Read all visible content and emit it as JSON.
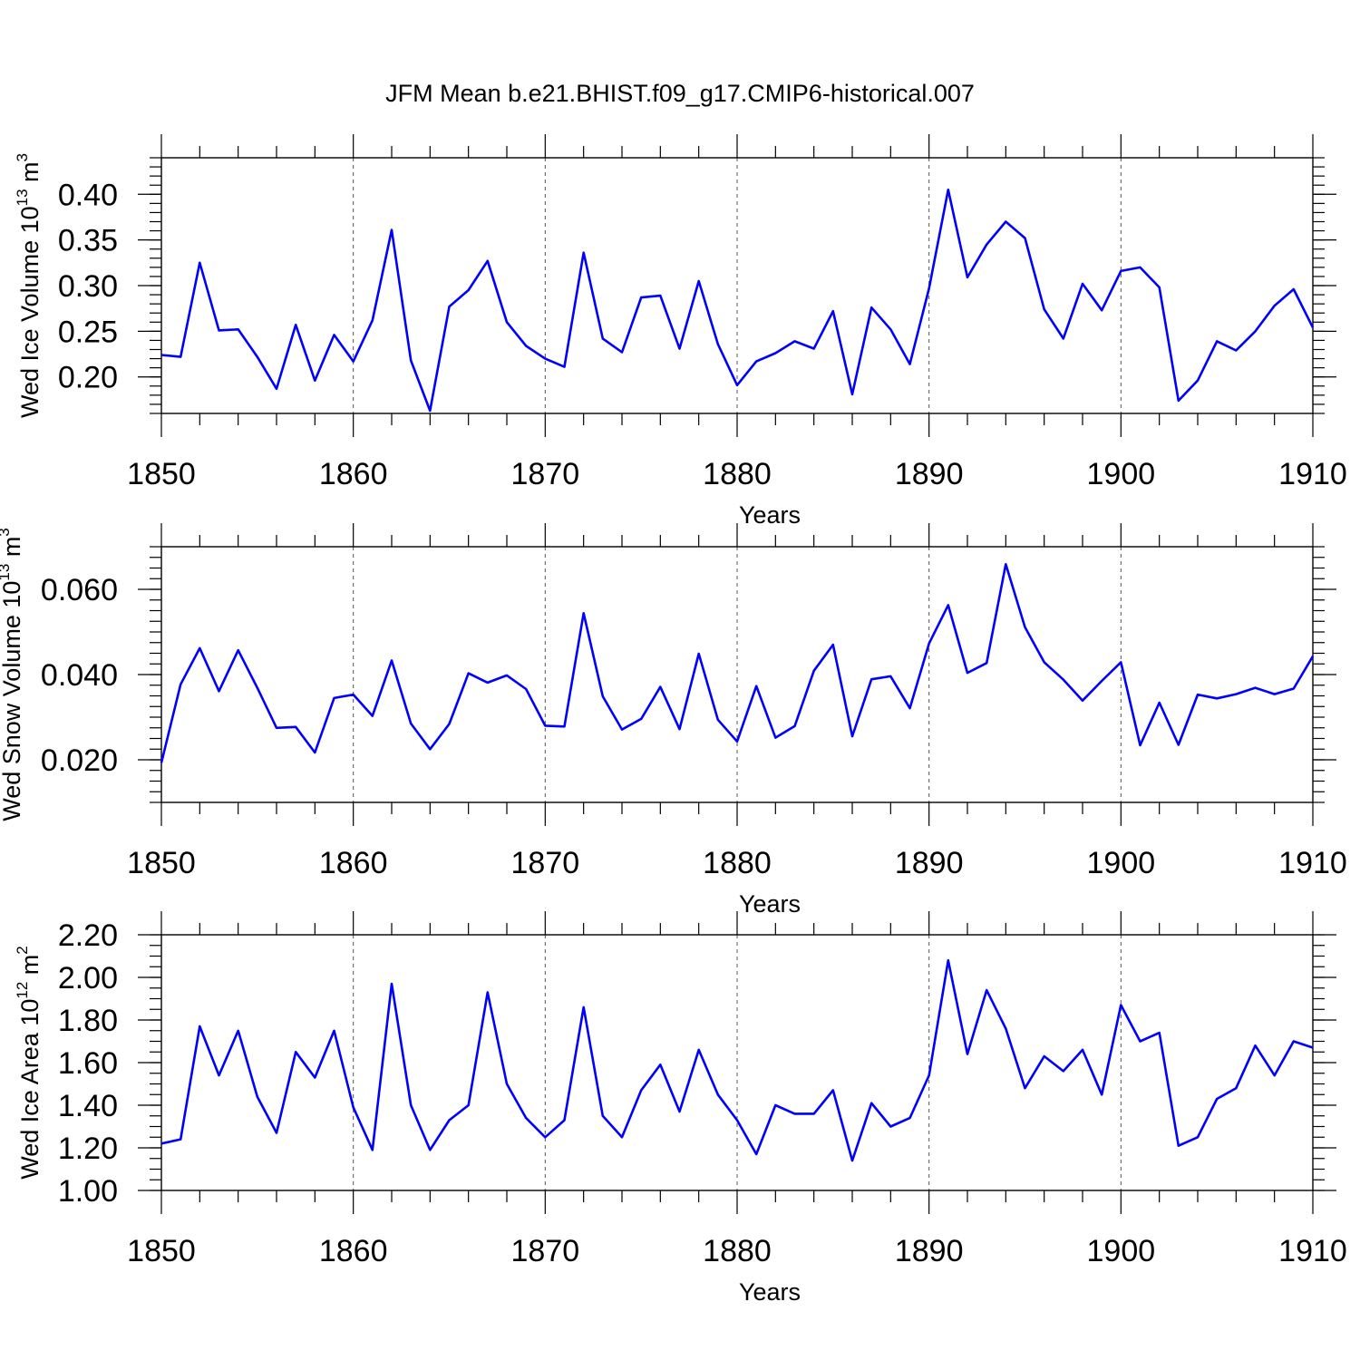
{
  "figure_title": "JFM Mean b.e21.BHIST.f09_g17.CMIP6-historical.007",
  "series_color": "#0000ff",
  "chart_data": [
    {
      "type": "line",
      "title": "JFM Mean b.e21.BHIST.f09_g17.CMIP6-historical.007",
      "xlabel": "Years",
      "ylabel": {
        "text": "Wed Ice Volume 10",
        "sup_exp": "13",
        "unit": " m",
        "sup_unit": "3"
      },
      "xlim": [
        1850,
        1910
      ],
      "ylim": [
        0.16,
        0.44
      ],
      "xticks": [
        1850,
        1860,
        1870,
        1880,
        1890,
        1900,
        1910
      ],
      "yticks": [
        "0.20",
        "0.25",
        "0.30",
        "0.35",
        "0.40"
      ],
      "ytick_values": [
        0.2,
        0.25,
        0.3,
        0.35,
        0.4
      ],
      "y_minor_step": 0.01,
      "grid": "vertical dashed",
      "x": [
        1850,
        1851,
        1852,
        1853,
        1854,
        1855,
        1856,
        1857,
        1858,
        1859,
        1860,
        1861,
        1862,
        1863,
        1864,
        1865,
        1866,
        1867,
        1868,
        1869,
        1870,
        1871,
        1872,
        1873,
        1874,
        1875,
        1876,
        1877,
        1878,
        1879,
        1880,
        1881,
        1882,
        1883,
        1884,
        1885,
        1886,
        1887,
        1888,
        1889,
        1890,
        1891,
        1892,
        1893,
        1894,
        1895,
        1896,
        1897,
        1898,
        1899,
        1900,
        1901,
        1902,
        1903,
        1904,
        1905,
        1906,
        1907,
        1908,
        1909,
        1910
      ],
      "values": [
        0.224,
        0.222,
        0.325,
        0.251,
        0.252,
        0.222,
        0.187,
        0.257,
        0.196,
        0.246,
        0.217,
        0.262,
        0.361,
        0.218,
        0.163,
        0.277,
        0.295,
        0.327,
        0.26,
        0.234,
        0.22,
        0.211,
        0.336,
        0.242,
        0.227,
        0.287,
        0.289,
        0.231,
        0.305,
        0.236,
        0.191,
        0.217,
        0.226,
        0.239,
        0.231,
        0.272,
        0.181,
        0.276,
        0.252,
        0.214,
        0.297,
        0.405,
        0.309,
        0.345,
        0.37,
        0.352,
        0.274,
        0.242,
        0.302,
        0.273,
        0.316,
        0.32,
        0.298,
        0.174,
        0.196,
        0.239,
        0.229,
        0.25,
        0.278,
        0.296,
        0.254
      ]
    },
    {
      "type": "line",
      "xlabel": "Years",
      "ylabel": {
        "text": "Wed Snow Volume 10",
        "sup_exp": "13",
        "unit": " m",
        "sup_unit": "3"
      },
      "xlim": [
        1850,
        1910
      ],
      "ylim": [
        0.01,
        0.07
      ],
      "xticks": [
        1850,
        1860,
        1870,
        1880,
        1890,
        1900,
        1910
      ],
      "yticks": [
        "0.020",
        "0.040",
        "0.060"
      ],
      "ytick_values": [
        0.02,
        0.04,
        0.06
      ],
      "y_minor_step": 0.0025,
      "grid": "vertical dashed",
      "x": [
        1850,
        1851,
        1852,
        1853,
        1854,
        1855,
        1856,
        1857,
        1858,
        1859,
        1860,
        1861,
        1862,
        1863,
        1864,
        1865,
        1866,
        1867,
        1868,
        1869,
        1870,
        1871,
        1872,
        1873,
        1874,
        1875,
        1876,
        1877,
        1878,
        1879,
        1880,
        1881,
        1882,
        1883,
        1884,
        1885,
        1886,
        1887,
        1888,
        1889,
        1890,
        1891,
        1892,
        1893,
        1894,
        1895,
        1896,
        1897,
        1898,
        1899,
        1900,
        1901,
        1902,
        1903,
        1904,
        1905,
        1906,
        1907,
        1908,
        1909,
        1910
      ],
      "values": [
        0.0193,
        0.0377,
        0.0462,
        0.0361,
        0.0457,
        0.0369,
        0.0275,
        0.0277,
        0.0217,
        0.0345,
        0.0353,
        0.0303,
        0.0433,
        0.0285,
        0.0225,
        0.0284,
        0.0403,
        0.0381,
        0.0398,
        0.0366,
        0.028,
        0.0278,
        0.0544,
        0.0349,
        0.0271,
        0.0296,
        0.0371,
        0.0272,
        0.0449,
        0.0294,
        0.0243,
        0.0373,
        0.0252,
        0.0279,
        0.0409,
        0.047,
        0.0255,
        0.0389,
        0.0396,
        0.0321,
        0.0473,
        0.0563,
        0.0404,
        0.0427,
        0.0659,
        0.0511,
        0.0429,
        0.0388,
        0.0339,
        0.0385,
        0.0429,
        0.0234,
        0.0334,
        0.0235,
        0.0353,
        0.0344,
        0.0354,
        0.0369,
        0.0354,
        0.0367,
        0.0443
      ]
    },
    {
      "type": "line",
      "xlabel": "Years",
      "ylabel": {
        "text": "Wed Ice Area 10",
        "sup_exp": "12",
        "unit": " m",
        "sup_unit": "2"
      },
      "xlim": [
        1850,
        1910
      ],
      "ylim": [
        1.0,
        2.2
      ],
      "xticks": [
        1850,
        1860,
        1870,
        1880,
        1890,
        1900,
        1910
      ],
      "yticks": [
        "1.00",
        "1.20",
        "1.40",
        "1.60",
        "1.80",
        "2.00",
        "2.20"
      ],
      "ytick_values": [
        1.0,
        1.2,
        1.4,
        1.6,
        1.8,
        2.0,
        2.2
      ],
      "y_minor_step": 0.05,
      "grid": "vertical dashed",
      "x": [
        1850,
        1851,
        1852,
        1853,
        1854,
        1855,
        1856,
        1857,
        1858,
        1859,
        1860,
        1861,
        1862,
        1863,
        1864,
        1865,
        1866,
        1867,
        1868,
        1869,
        1870,
        1871,
        1872,
        1873,
        1874,
        1875,
        1876,
        1877,
        1878,
        1879,
        1880,
        1881,
        1882,
        1883,
        1884,
        1885,
        1886,
        1887,
        1888,
        1889,
        1890,
        1891,
        1892,
        1893,
        1894,
        1895,
        1896,
        1897,
        1898,
        1899,
        1900,
        1901,
        1902,
        1903,
        1904,
        1905,
        1906,
        1907,
        1908,
        1909,
        1910
      ],
      "values": [
        1.22,
        1.24,
        1.77,
        1.54,
        1.75,
        1.44,
        1.27,
        1.65,
        1.53,
        1.75,
        1.39,
        1.19,
        1.97,
        1.4,
        1.19,
        1.33,
        1.4,
        1.93,
        1.5,
        1.34,
        1.25,
        1.33,
        1.86,
        1.35,
        1.25,
        1.47,
        1.59,
        1.37,
        1.66,
        1.45,
        1.33,
        1.17,
        1.4,
        1.36,
        1.36,
        1.47,
        1.14,
        1.41,
        1.3,
        1.34,
        1.54,
        2.08,
        1.64,
        1.94,
        1.76,
        1.48,
        1.63,
        1.56,
        1.66,
        1.45,
        1.87,
        1.7,
        1.74,
        1.21,
        1.25,
        1.43,
        1.48,
        1.68,
        1.54,
        1.7,
        1.67
      ]
    }
  ]
}
